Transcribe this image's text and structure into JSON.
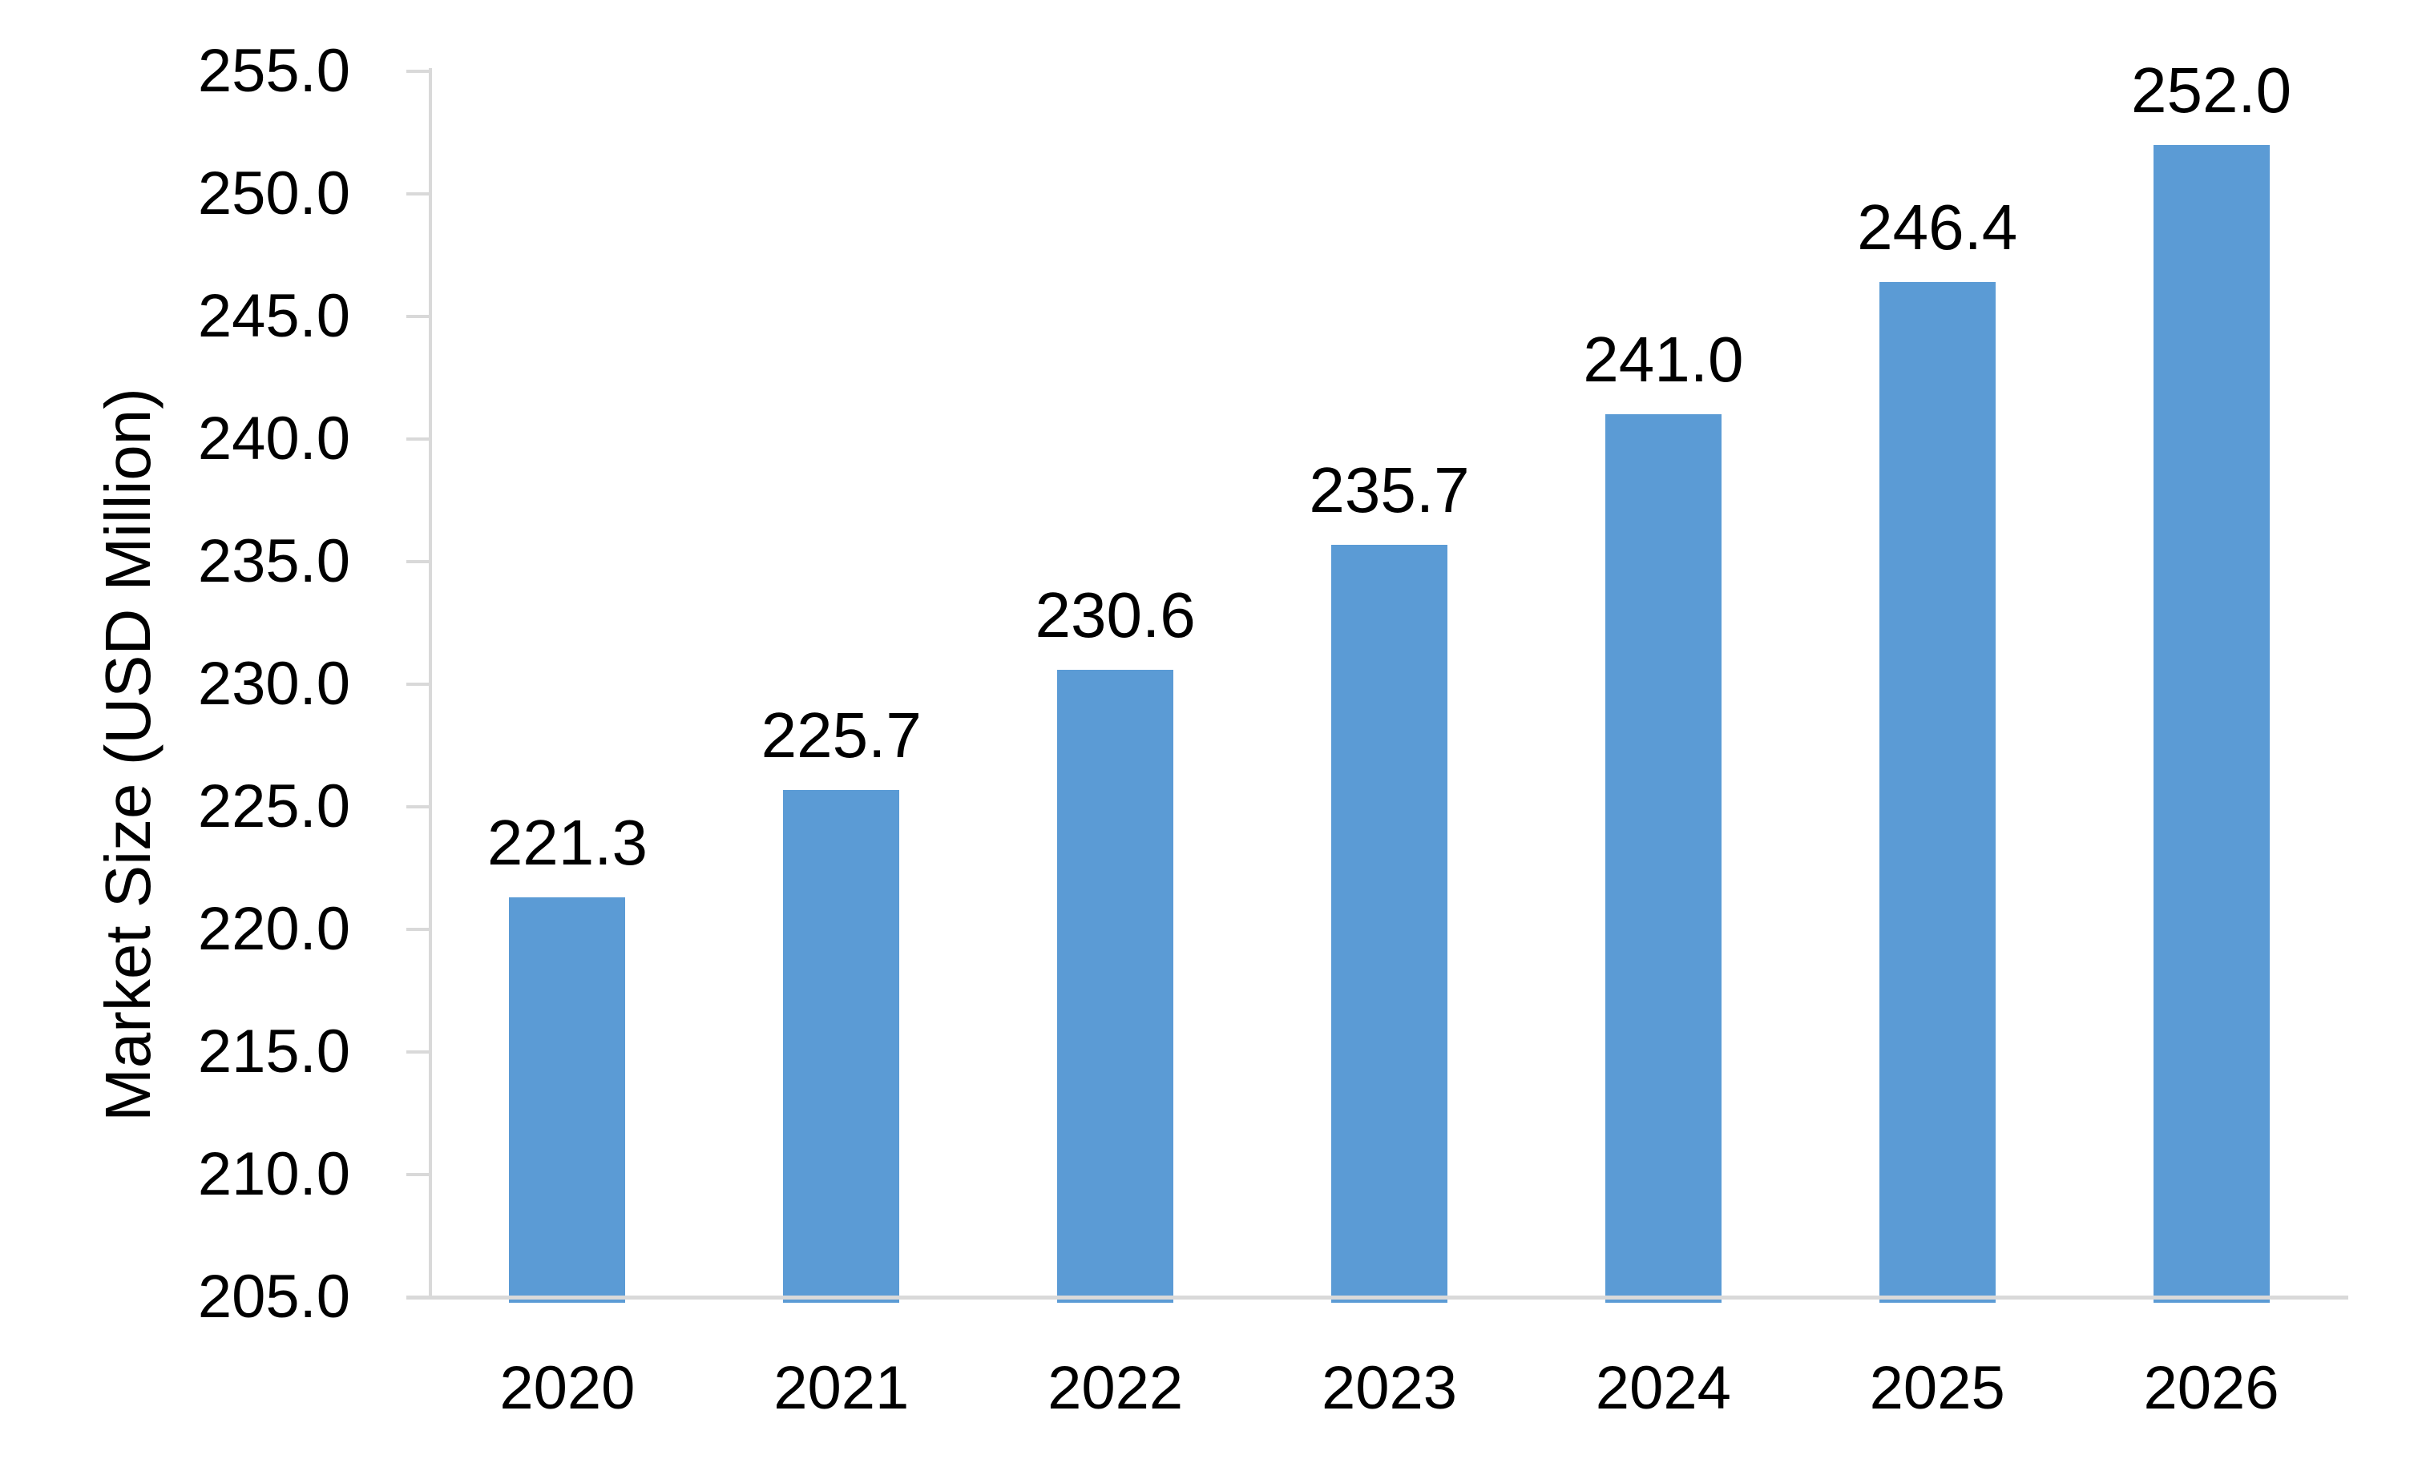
{
  "chart_data": {
    "type": "bar",
    "title": "",
    "xlabel": "",
    "ylabel": "Market Size (USD Million)",
    "categories": [
      "2020",
      "2021",
      "2022",
      "2023",
      "2024",
      "2025",
      "2026"
    ],
    "values": [
      221.3,
      225.7,
      230.6,
      235.7,
      241.0,
      246.4,
      252.0
    ],
    "value_labels": [
      "221.3",
      "225.7",
      "230.6",
      "235.7",
      "241.0",
      "246.4",
      "252.0"
    ],
    "ylim": [
      205.0,
      255.0
    ],
    "ytick_step": 5.0,
    "ytick_labels": [
      "205.0",
      "210.0",
      "215.0",
      "220.0",
      "225.0",
      "230.0",
      "235.0",
      "240.0",
      "245.0",
      "250.0",
      "255.0"
    ],
    "grid": false,
    "legend": false,
    "bar_color": "#5B9BD5",
    "axis_color": "#D9D9D9",
    "text_color": "#000000",
    "background_color": "#FFFFFF"
  }
}
